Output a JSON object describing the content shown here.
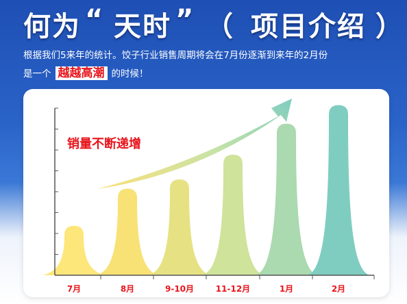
{
  "title": {
    "part1": "何为",
    "quote_open": "“",
    "part2": "天时",
    "quote_close": "”",
    "paren_open": "（",
    "part3": "项目介绍",
    "paren_close": "）"
  },
  "intro": {
    "line1": "根据我们5来年的统计。饺子行业销售周期将会在7月份逐渐到来年的2月份",
    "line2_prefix": "是一个",
    "highlight": "越越高潮",
    "line2_suffix": "的时候！"
  },
  "chart_data": {
    "type": "bar",
    "categories": [
      "7月",
      "8月",
      "9-10月",
      "11-12月",
      "1月",
      "2月"
    ],
    "values": [
      1.6,
      2.8,
      3.1,
      3.9,
      4.9,
      5.5
    ],
    "ylim": [
      0,
      5.8
    ],
    "annotation": "销量不断递增",
    "bar_colors": [
      "#fde67a",
      "#f8e175",
      "#e6e284",
      "#cfe39a",
      "#abd9b0",
      "#7fcdc0"
    ],
    "arrow_color": "#9fd6c4",
    "axis_color": "#555555",
    "annotation_color": "#e8141b"
  }
}
